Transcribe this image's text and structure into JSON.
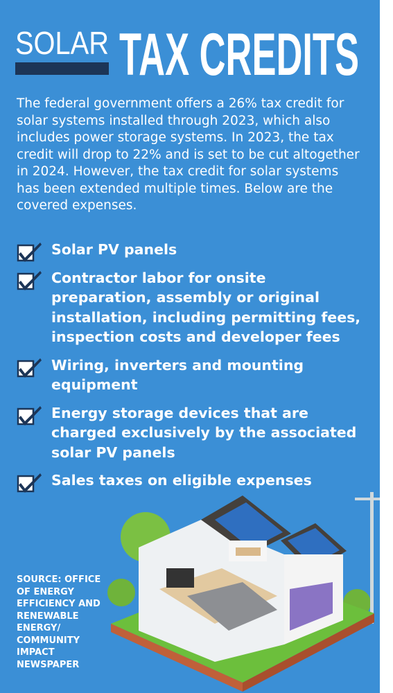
{
  "header": {
    "title_small": "SOLAR",
    "title_large": "TAX CREDITS"
  },
  "intro": "The federal government offers a 26% tax credit for solar systems installed through 2023, which also includes power storage systems. In 2023, the tax credit will drop to 22% and is set to be cut altogether in 2024. However, the tax credit for solar systems has been extended multiple times. Below are the covered expenses.",
  "items": [
    "Solar PV panels",
    "Contractor labor for onsite preparation, assembly or original installation, including permitting fees, inspection costs and developer fees",
    "Wiring, inverters and mounting equipment",
    "Energy storage devices that are charged exclusively by the associated solar PV panels",
    "Sales taxes on eligible expenses"
  ],
  "source": "SOURCE: OFFICE OF ENERGY EFFICIENCY AND RENEWABLE ENERGY/ COMMUNITY IMPACT NEWSPAPER"
}
